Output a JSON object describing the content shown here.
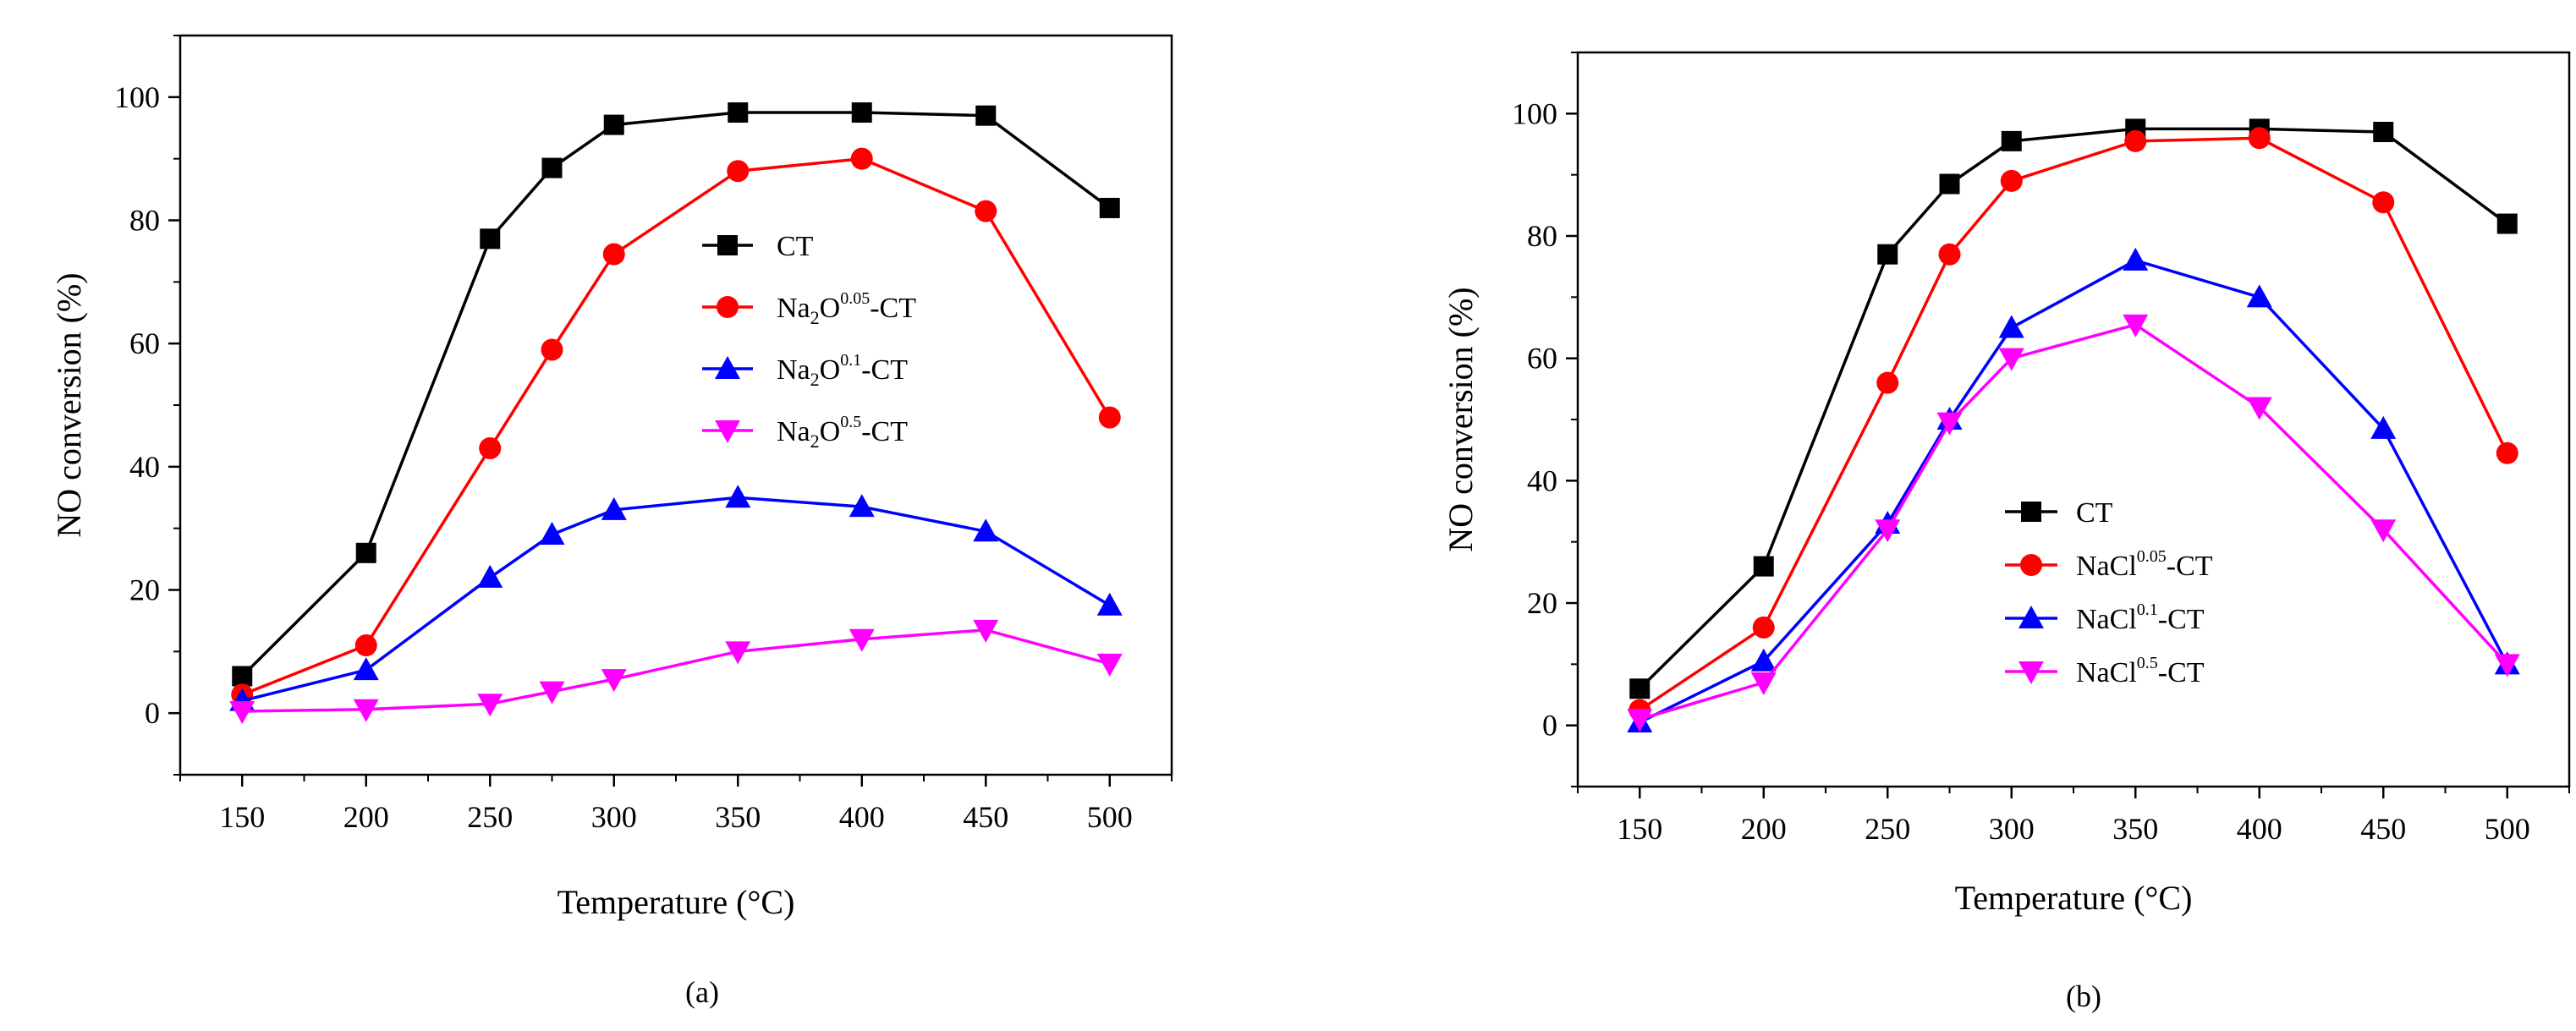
{
  "chart_data": [
    {
      "type": "line",
      "caption": "(a)",
      "xlabel": "Temperature (°C)",
      "ylabel": "NO conversion (%)",
      "xlim": [
        125,
        525
      ],
      "ylim": [
        -10,
        110
      ],
      "xticks": [
        150,
        200,
        250,
        300,
        350,
        400,
        450,
        500
      ],
      "yticks": [
        0,
        20,
        40,
        60,
        80,
        100
      ],
      "tick_labels_x": [
        "150",
        "200",
        "250",
        "300",
        "350",
        "400",
        "450",
        "500"
      ],
      "tick_labels_y": [
        "0",
        "20",
        "40",
        "60",
        "80",
        "100"
      ],
      "legend_position": "center-right",
      "series": [
        {
          "name": "CT",
          "base": "CT",
          "label_parts": [
            {
              "t": "CT"
            }
          ],
          "marker": "square",
          "color": "#000000",
          "x": [
            150,
            200,
            250,
            275,
            300,
            350,
            400,
            450,
            500
          ],
          "y": [
            6,
            26,
            77,
            88.5,
            95.5,
            97.5,
            97.5,
            97,
            82
          ]
        },
        {
          "name": "Na2O0.05-CT",
          "base": "Na",
          "sub": "2",
          "mid": "O",
          "sup": "0.05",
          "tail": "-CT",
          "marker": "circle",
          "color": "#ff0000",
          "x": [
            150,
            200,
            250,
            275,
            300,
            350,
            400,
            450,
            500
          ],
          "y": [
            3,
            11,
            43,
            59,
            74.5,
            88,
            90,
            81.5,
            48
          ]
        },
        {
          "name": "Na2O0.1-CT",
          "base": "Na",
          "sub": "2",
          "mid": "O",
          "sup": "0.1",
          "tail": "-CT",
          "marker": "triangle-up",
          "color": "#0000ff",
          "x": [
            150,
            200,
            250,
            275,
            300,
            350,
            400,
            450,
            500
          ],
          "y": [
            2,
            7,
            22,
            29,
            33,
            35,
            33.5,
            29.5,
            17.5
          ]
        },
        {
          "name": "Na2O0.5-CT",
          "base": "Na",
          "sub": "2",
          "mid": "O",
          "sup": "0.5",
          "tail": "-CT",
          "marker": "triangle-down",
          "color": "#ff00ff",
          "x": [
            150,
            200,
            250,
            275,
            300,
            350,
            400,
            450,
            500
          ],
          "y": [
            0.3,
            0.6,
            1.5,
            3.5,
            5.5,
            10,
            12,
            13.5,
            8
          ]
        }
      ]
    },
    {
      "type": "line",
      "caption": "(b)",
      "xlabel": "Temperature (°C)",
      "ylabel": "NO conversion (%)",
      "xlim": [
        125,
        525
      ],
      "ylim": [
        -10,
        110
      ],
      "xticks": [
        150,
        200,
        250,
        300,
        350,
        400,
        450,
        500
      ],
      "yticks": [
        0,
        20,
        40,
        60,
        80,
        100
      ],
      "tick_labels_x": [
        "150",
        "200",
        "250",
        "300",
        "350",
        "400",
        "450",
        "500"
      ],
      "tick_labels_y": [
        "0",
        "20",
        "40",
        "60",
        "80",
        "100"
      ],
      "legend_position": "lower-center",
      "series": [
        {
          "name": "CT",
          "base": "CT",
          "marker": "square",
          "color": "#000000",
          "x": [
            150,
            200,
            250,
            275,
            300,
            350,
            400,
            450,
            500
          ],
          "y": [
            6,
            26,
            77,
            88.5,
            95.5,
            97.5,
            97.5,
            97,
            82
          ]
        },
        {
          "name": "NaCl0.05-CT",
          "base": "NaCl",
          "sup": "0.05",
          "tail": "-CT",
          "marker": "circle",
          "color": "#ff0000",
          "x": [
            150,
            200,
            250,
            275,
            300,
            350,
            400,
            450,
            500
          ],
          "y": [
            2.5,
            16,
            56,
            77,
            89,
            95.5,
            96,
            85.5,
            44.5
          ]
        },
        {
          "name": "NaCl0.1-CT",
          "base": "NaCl",
          "sup": "0.1",
          "tail": "-CT",
          "marker": "triangle-up",
          "color": "#0000ff",
          "x": [
            150,
            200,
            250,
            275,
            300,
            350,
            400,
            450,
            500
          ],
          "y": [
            0.5,
            10.5,
            33,
            50,
            65,
            76,
            70,
            48.5,
            10
          ]
        },
        {
          "name": "NaCl0.5-CT",
          "base": "NaCl",
          "sup": "0.5",
          "tail": "-CT",
          "marker": "triangle-down",
          "color": "#ff00ff",
          "x": [
            150,
            200,
            250,
            275,
            300,
            350,
            400,
            450,
            500
          ],
          "y": [
            1,
            7,
            32,
            49.5,
            60,
            65.5,
            52,
            32,
            10
          ]
        }
      ]
    }
  ]
}
